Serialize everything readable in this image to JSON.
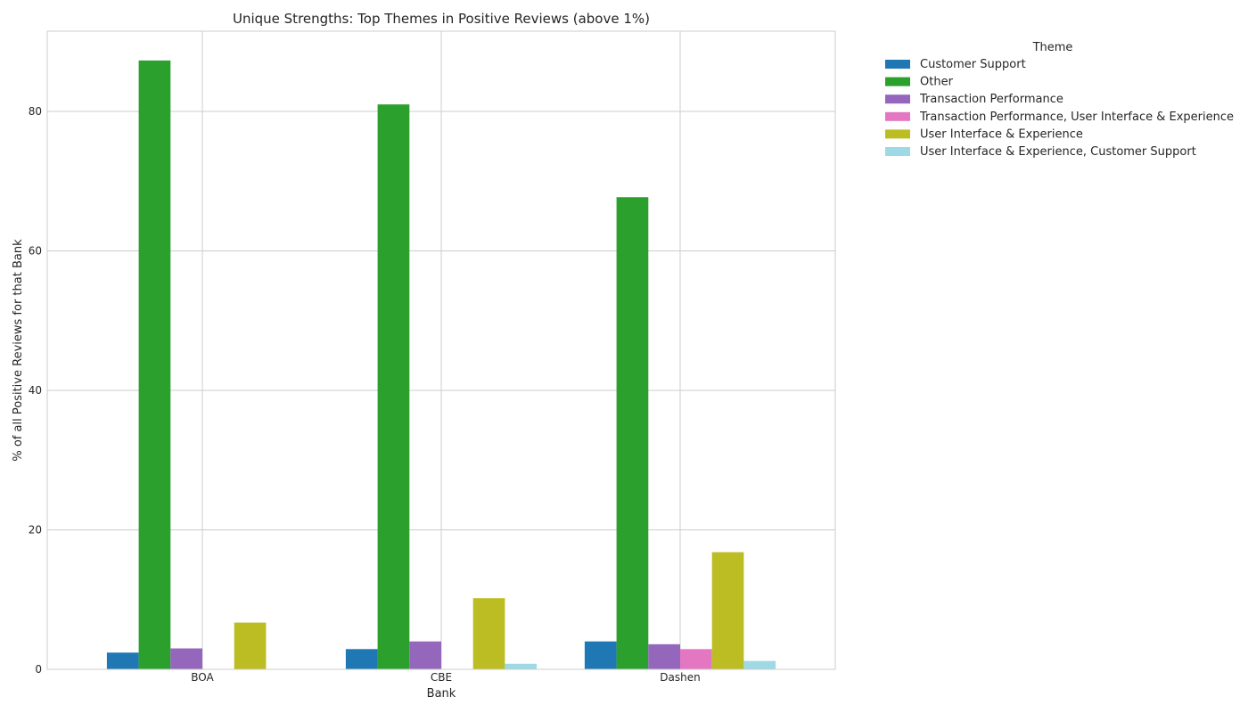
{
  "chart_data": {
    "type": "bar",
    "title": "Unique Strengths: Top Themes in Positive Reviews (above 1%)",
    "xlabel": "Bank",
    "ylabel": "% of all Positive Reviews for that Bank",
    "categories": [
      "BOA",
      "CBE",
      "Dashen"
    ],
    "ylim": [
      0,
      91.5
    ],
    "yticks": [
      0,
      20,
      40,
      60,
      80
    ],
    "grid": true,
    "legend": {
      "title": "Theme",
      "placement": "outside-right-top"
    },
    "series": [
      {
        "name": "Customer Support",
        "color": "#1f77b4",
        "values": [
          2.4,
          2.9,
          4.0
        ]
      },
      {
        "name": "Other",
        "color": "#2ca02c",
        "values": [
          87.3,
          81.0,
          67.7
        ]
      },
      {
        "name": "Transaction Performance",
        "color": "#9467bd",
        "values": [
          3.0,
          4.0,
          3.6
        ]
      },
      {
        "name": "Transaction Performance, User Interface & Experience",
        "color": "#e377c2",
        "values": [
          0,
          0,
          2.9
        ]
      },
      {
        "name": "User Interface & Experience",
        "color": "#bcbd22",
        "values": [
          6.7,
          10.2,
          16.8
        ]
      },
      {
        "name": "User Interface & Experience, Customer Support",
        "color": "#9edae5",
        "values": [
          0,
          0.8,
          1.2
        ]
      }
    ]
  }
}
